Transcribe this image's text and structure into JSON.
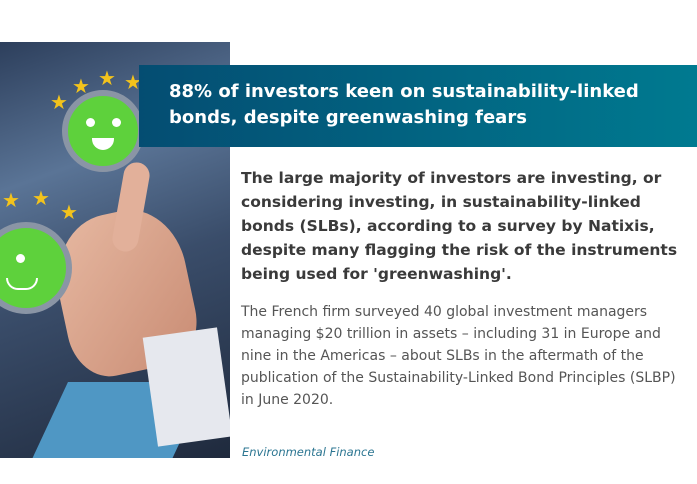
{
  "article": {
    "title": "88% of investors keen on sustainability-linked bonds, despite greenwashing fears",
    "lead": "The large majority of investors are investing, or considering investing, in sustainability-linked bonds (SLBs), according to a survey by Natixis, despite many flagging the risk of the instruments being used for 'greenwashing'.",
    "body": "The French firm surveyed 40 global investment managers managing $20 trillion in assets – including 31 in Europe and nine in the Americas – about SLBs in the aftermath of the publication of the Sustainability-Linked Bond Principles (SLBP) in June 2020.",
    "source": "Environmental Finance"
  },
  "colors": {
    "banner_start": "#044d72",
    "banner_end": "#007a90",
    "source": "#2b7591"
  }
}
